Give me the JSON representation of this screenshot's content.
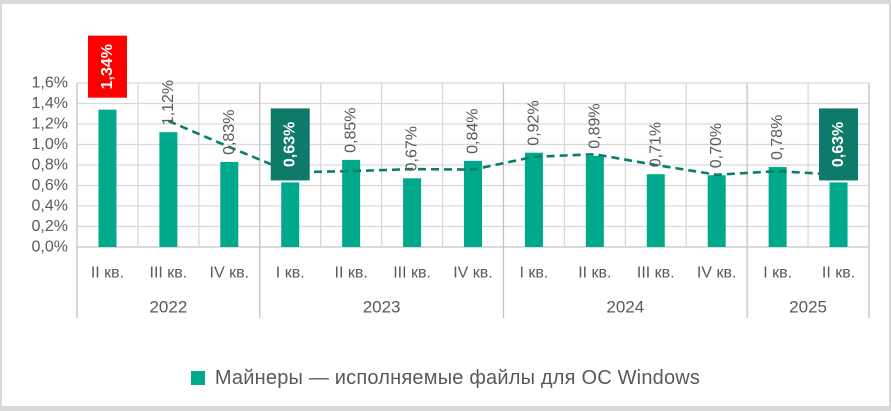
{
  "chart_data": {
    "type": "bar",
    "title": "",
    "categories": [
      "II кв.",
      "III кв.",
      "IV кв.",
      "I кв.",
      "II кв.",
      "III кв.",
      "IV кв.",
      "I кв.",
      "II кв.",
      "III кв.",
      "IV кв.",
      "I кв.",
      "II кв."
    ],
    "year_groups": [
      {
        "label": "2022",
        "span": 3
      },
      {
        "label": "2023",
        "span": 4
      },
      {
        "label": "2024",
        "span": 4
      },
      {
        "label": "2025",
        "span": 2
      }
    ],
    "values": [
      1.34,
      1.12,
      0.83,
      0.63,
      0.85,
      0.67,
      0.84,
      0.92,
      0.89,
      0.71,
      0.7,
      0.78,
      0.63
    ],
    "value_labels": [
      "1,34%",
      "1,12%",
      "0,83%",
      "0,63%",
      "0,85%",
      "0,67%",
      "0,84%",
      "0,92%",
      "0,89%",
      "0,71%",
      "0,70%",
      "0,78%",
      "0,63%"
    ],
    "highlights": [
      {
        "index": 0,
        "box_color": "#FF0000",
        "text_color": "#FFFFFF"
      },
      {
        "index": 3,
        "box_color": "#0D7A6A",
        "text_color": "#FFFFFF"
      },
      {
        "index": 12,
        "box_color": "#0D7A6A",
        "text_color": "#FFFFFF"
      }
    ],
    "trend": {
      "type": "moving-average-2",
      "start_index": 1,
      "values": [
        1.23,
        0.975,
        0.73,
        0.74,
        0.76,
        0.755,
        0.88,
        0.905,
        0.8,
        0.705,
        0.74,
        0.705
      ],
      "color": "#087D6E",
      "dashed": true
    },
    "ylim": [
      0,
      1.6
    ],
    "ytick_step": 0.2,
    "ytick_labels": [
      "0,0%",
      "0,2%",
      "0,4%",
      "0,6%",
      "0,8%",
      "1,0%",
      "1,2%",
      "1,4%",
      "1,6%"
    ],
    "grid": true,
    "bar_color": "#00A88C",
    "colors": {
      "gridline": "#D9D9D9",
      "axis": "#C4C4C4",
      "tick_text": "#595959",
      "data_label_text": "#595959",
      "year_text": "#595959"
    },
    "legend": {
      "position": "bottom",
      "entries": [
        {
          "label": "Майнеры — исполняемые файлы для ОС Windows",
          "color": "#00A88C"
        }
      ]
    }
  }
}
